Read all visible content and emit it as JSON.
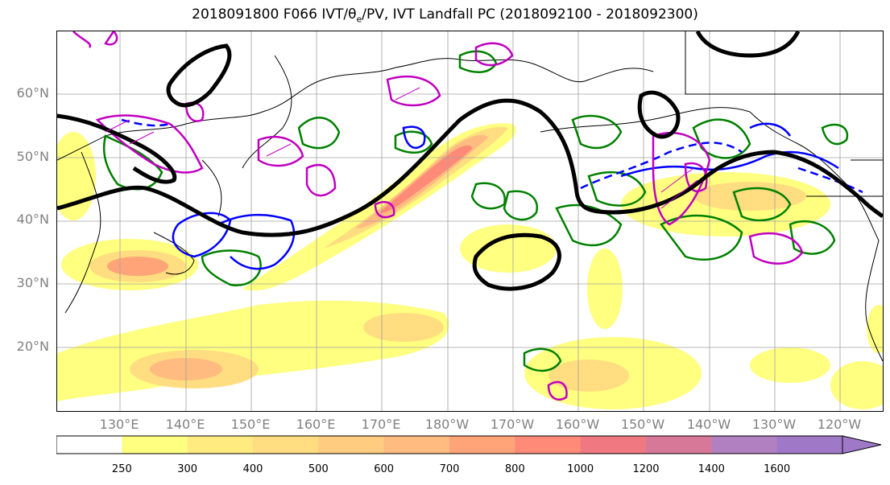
{
  "title_parts": {
    "prefix": "2018091800 F066 IVT/",
    "theta": "θ",
    "theta_sub": "e",
    "suffix": "/PV, IVT Landfall PC (2018092100 - 2018092300)"
  },
  "map": {
    "lat_labels": [
      "60°N",
      "50°N",
      "40°N",
      "30°N",
      "20°N"
    ],
    "lon_labels": [
      "130°E",
      "140°E",
      "150°E",
      "160°E",
      "170°E",
      "180°W",
      "170°W",
      "160°W",
      "150°W",
      "140°W",
      "130°W",
      "120°W"
    ],
    "colors": {
      "theta_e_contour": "#000000",
      "pv_contour_magenta": "#c000c0",
      "contour_green": "#008000",
      "contour_blue": "#0000ff",
      "grid": "#a0a0a0",
      "coast": "#000000"
    }
  },
  "colorbar": {
    "levels": [
      "250",
      "300",
      "400",
      "500",
      "600",
      "700",
      "800",
      "1000",
      "1200",
      "1400",
      "1600"
    ],
    "colors": [
      "#ffffff",
      "#ffff80",
      "#ffeb80",
      "#ffdd80",
      "#ffcc80",
      "#ffbb80",
      "#ffa478",
      "#ff8a78",
      "#f07880",
      "#d87898",
      "#b080c0",
      "#a078c8"
    ],
    "extend": "max"
  }
}
